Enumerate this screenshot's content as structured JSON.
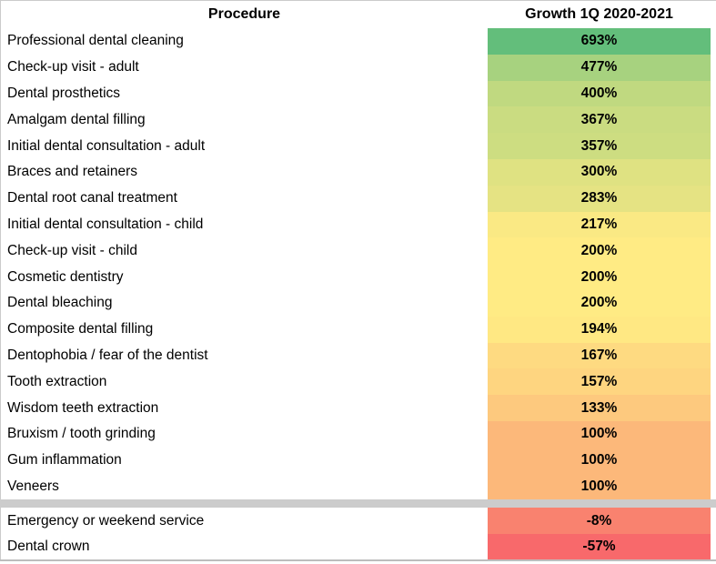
{
  "table": {
    "header": {
      "procedure": "Procedure",
      "growth": "Growth 1Q 2020-2021"
    },
    "separator_after": 18,
    "separator_color": "#CCCCCC",
    "border_color": "#CBCBCB",
    "bottom_line_color": "#BDBDBD",
    "rows": [
      {
        "procedure": "Professional dental cleaning",
        "growth": "693%",
        "color": "#63BE7B"
      },
      {
        "procedure": "Check-up visit - adult",
        "growth": "477%",
        "color": "#A7D27F"
      },
      {
        "procedure": "Dental prosthetics",
        "growth": "400%",
        "color": "#C0D980"
      },
      {
        "procedure": "Amalgam dental filling",
        "growth": "367%",
        "color": "#CADC81"
      },
      {
        "procedure": "Initial dental consultation - adult",
        "growth": "357%",
        "color": "#CDDD81"
      },
      {
        "procedure": "Braces and retainers",
        "growth": "300%",
        "color": "#DFE282"
      },
      {
        "procedure": "Dental root canal treatment",
        "growth": "283%",
        "color": "#E5E383"
      },
      {
        "procedure": "Initial dental consultation - child",
        "growth": "217%",
        "color": "#FAE984"
      },
      {
        "procedure": "Check-up visit - child",
        "growth": "200%",
        "color": "#FFEB84"
      },
      {
        "procedure": "Cosmetic dentistry",
        "growth": "200%",
        "color": "#FFEB84"
      },
      {
        "procedure": "Dental bleaching",
        "growth": "200%",
        "color": "#FFEB84"
      },
      {
        "procedure": "Composite dental filling",
        "growth": "194%",
        "color": "#FFE883"
      },
      {
        "procedure": "Dentophobia / fear of the dentist",
        "growth": "167%",
        "color": "#FEDA81"
      },
      {
        "procedure": "Tooth extraction",
        "growth": "157%",
        "color": "#FED580"
      },
      {
        "procedure": "Wisdom teeth extraction",
        "growth": "133%",
        "color": "#FDC97E"
      },
      {
        "procedure": "Bruxism / tooth grinding",
        "growth": "100%",
        "color": "#FCB87A"
      },
      {
        "procedure": "Gum inflammation",
        "growth": "100%",
        "color": "#FCB87A"
      },
      {
        "procedure": "Veneers",
        "growth": "100%",
        "color": "#FCB87A"
      },
      {
        "procedure": "Emergency or weekend service",
        "growth": "-8%",
        "color": "#F9826F"
      },
      {
        "procedure": "Dental crown",
        "growth": "-57%",
        "color": "#F8696B"
      }
    ]
  },
  "chart_data": {
    "type": "table",
    "columns": [
      "Procedure",
      "Growth 1Q 2020-2021"
    ],
    "categories": [
      "Professional dental cleaning",
      "Check-up visit - adult",
      "Dental prosthetics",
      "Amalgam dental filling",
      "Initial dental consultation - adult",
      "Braces and retainers",
      "Dental root canal treatment",
      "Initial dental consultation - child",
      "Check-up visit - child",
      "Cosmetic dentistry",
      "Dental bleaching",
      "Composite dental filling",
      "Dentophobia / fear of the dentist",
      "Tooth extraction",
      "Wisdom teeth extraction",
      "Bruxism / tooth grinding",
      "Gum inflammation",
      "Veneers",
      "Emergency or weekend service",
      "Dental crown"
    ],
    "values": [
      693,
      477,
      400,
      367,
      357,
      300,
      283,
      217,
      200,
      200,
      200,
      194,
      167,
      157,
      133,
      100,
      100,
      100,
      -8,
      -57
    ],
    "value_unit": "%",
    "separator_after_row": 18,
    "conditional_formatting": {
      "type": "3-color-scale",
      "min_value": -57,
      "min_color": "#F8696B",
      "mid_value": 200,
      "mid_color": "#FFEB84",
      "max_value": 693,
      "max_color": "#63BE7B"
    }
  }
}
